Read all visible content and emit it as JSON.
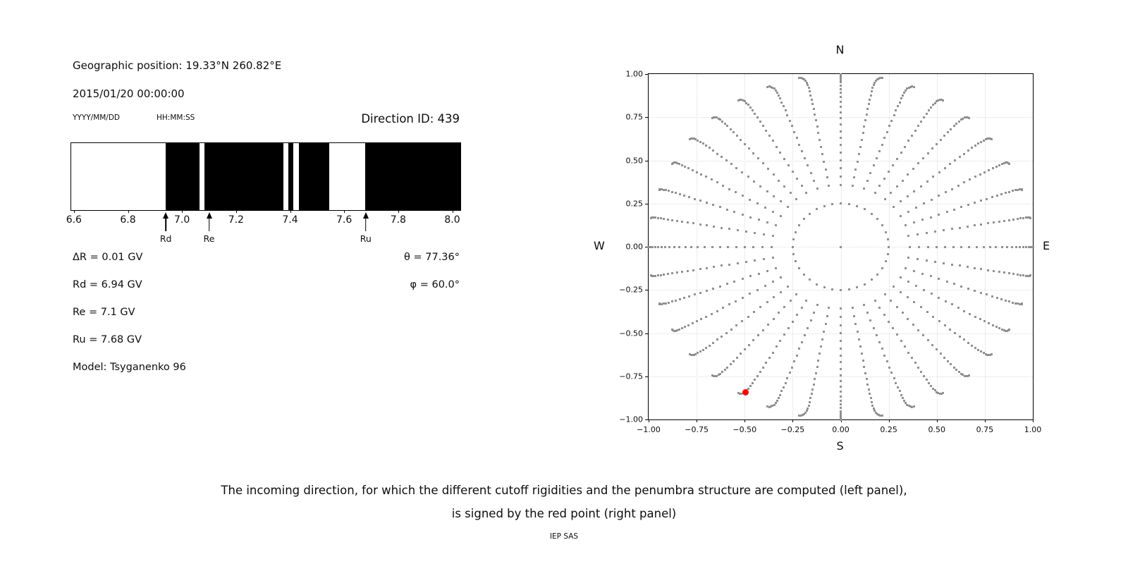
{
  "left_panel": {
    "geo_position": "Geographic position: 19.33°N 260.82°E",
    "datetime": "2015/01/20 00:00:00",
    "date_format": "YYYY/MM/DD",
    "time_format": "HH:MM:SS",
    "direction_id": "Direction ID: 439",
    "lines": [
      "ΔR = 0.01 GV",
      "Rd = 6.94 GV",
      "Re = 7.1 GV",
      "Ru = 7.68 GV",
      "Model: Tsyganenko 96"
    ],
    "angles": [
      "θ = 77.36°",
      "φ = 60.0°"
    ]
  },
  "chart_data": [
    {
      "type": "bar",
      "name": "penumbra-structure",
      "xlim": [
        6.59,
        8.03
      ],
      "xticks": [
        6.6,
        6.8,
        7.0,
        7.2,
        7.4,
        7.6,
        7.8,
        8.0
      ],
      "xtick_labels": [
        "6.6",
        "6.8",
        "7.0",
        "7.2",
        "7.4",
        "7.6",
        "7.8",
        "8.0"
      ],
      "forbidden_color": "#000000",
      "allowed_color": "#ffffff",
      "black_segments": [
        [
          6.94,
          7.066
        ],
        [
          7.082,
          7.376
        ],
        [
          7.393,
          7.413
        ],
        [
          7.433,
          7.544
        ],
        [
          7.679,
          8.03
        ]
      ],
      "markers": [
        {
          "label": "Rd",
          "value": 6.94
        },
        {
          "label": "Re",
          "value": 7.1
        },
        {
          "label": "Ru",
          "value": 7.68
        }
      ]
    },
    {
      "type": "scatter",
      "name": "incoming-directions",
      "xlim": [
        -1,
        1
      ],
      "ylim": [
        -1,
        1
      ],
      "xticks": [
        -1.0,
        -0.75,
        -0.5,
        -0.25,
        0.0,
        0.25,
        0.5,
        0.75,
        1.0
      ],
      "yticks": [
        -1.0,
        -0.75,
        -0.5,
        -0.25,
        0.0,
        0.25,
        0.5,
        0.75,
        1.0
      ],
      "xtick_labels": [
        "−1.00",
        "−0.75",
        "−0.50",
        "−0.25",
        "0.00",
        "0.25",
        "0.50",
        "0.75",
        "1.00"
      ],
      "ytick_labels": [
        "−1.00",
        "−0.75",
        "−0.50",
        "−0.25",
        "0.00",
        "0.25",
        "0.50",
        "0.75",
        "1.00"
      ],
      "grid": true,
      "compass": {
        "top": "N",
        "bottom": "S",
        "left": "W",
        "right": "E"
      },
      "dot_color": "#8f8f8f",
      "structure": {
        "center_point": [
          0,
          0
        ],
        "ring": {
          "radius": 0.25,
          "count": 36
        },
        "rays": {
          "azimuth_start_deg": 0,
          "azimuth_step_deg": 10,
          "azimuth_count": 36,
          "zenith_start_deg": 21,
          "zenith_end_deg": 90,
          "zenith_step_deg": 3,
          "radius_rule": "sin(zenith)",
          "bend_deg": 2.5,
          "bend_power": 6
        }
      },
      "red_point": {
        "x": -0.497,
        "y": -0.844,
        "color": "#ff0000"
      }
    }
  ],
  "caption": {
    "line1": "The incoming direction, for which the different cutoff rigidities and the penumbra structure are computed (left panel),",
    "line2": "is signed by the red point (right panel)"
  },
  "credit": "IEP SAS"
}
